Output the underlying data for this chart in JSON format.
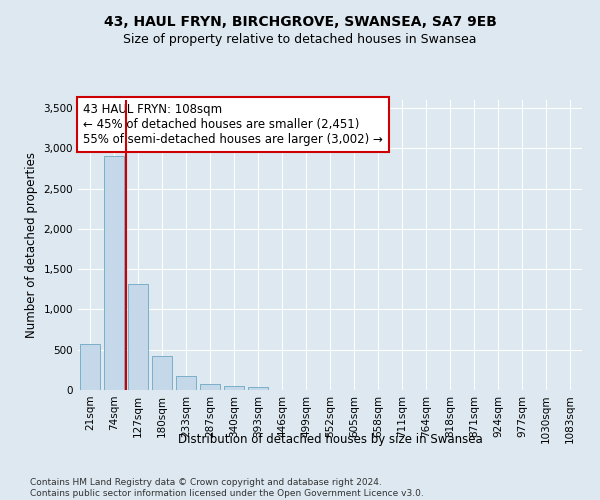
{
  "title": "43, HAUL FRYN, BIRCHGROVE, SWANSEA, SA7 9EB",
  "subtitle": "Size of property relative to detached houses in Swansea",
  "xlabel": "Distribution of detached houses by size in Swansea",
  "ylabel": "Number of detached properties",
  "bar_values": [
    570,
    2900,
    1310,
    420,
    175,
    80,
    45,
    40,
    0,
    0,
    0,
    0,
    0,
    0,
    0,
    0,
    0,
    0,
    0,
    0,
    0
  ],
  "categories": [
    "21sqm",
    "74sqm",
    "127sqm",
    "180sqm",
    "233sqm",
    "287sqm",
    "340sqm",
    "393sqm",
    "446sqm",
    "499sqm",
    "552sqm",
    "605sqm",
    "658sqm",
    "711sqm",
    "764sqm",
    "818sqm",
    "871sqm",
    "924sqm",
    "977sqm",
    "1030sqm",
    "1083sqm"
  ],
  "bar_color": "#c5d8ea",
  "bar_edge_color": "#7aafc8",
  "vline_color": "#cc0000",
  "vline_x_index": 1.5,
  "annotation_line1": "43 HAUL FRYN: 108sqm",
  "annotation_line2": "← 45% of detached houses are smaller (2,451)",
  "annotation_line3": "55% of semi-detached houses are larger (3,002) →",
  "annotation_box_color": "#ffffff",
  "annotation_box_edge": "#cc0000",
  "ylim": [
    0,
    3600
  ],
  "yticks": [
    0,
    500,
    1000,
    1500,
    2000,
    2500,
    3000,
    3500
  ],
  "bg_color": "#dde8f0",
  "plot_bg_color": "#dde8f0",
  "footer_line1": "Contains HM Land Registry data © Crown copyright and database right 2024.",
  "footer_line2": "Contains public sector information licensed under the Open Government Licence v3.0.",
  "title_fontsize": 10,
  "subtitle_fontsize": 9,
  "axis_label_fontsize": 8.5,
  "tick_fontsize": 7.5,
  "annotation_fontsize": 8.5,
  "footer_fontsize": 6.5
}
